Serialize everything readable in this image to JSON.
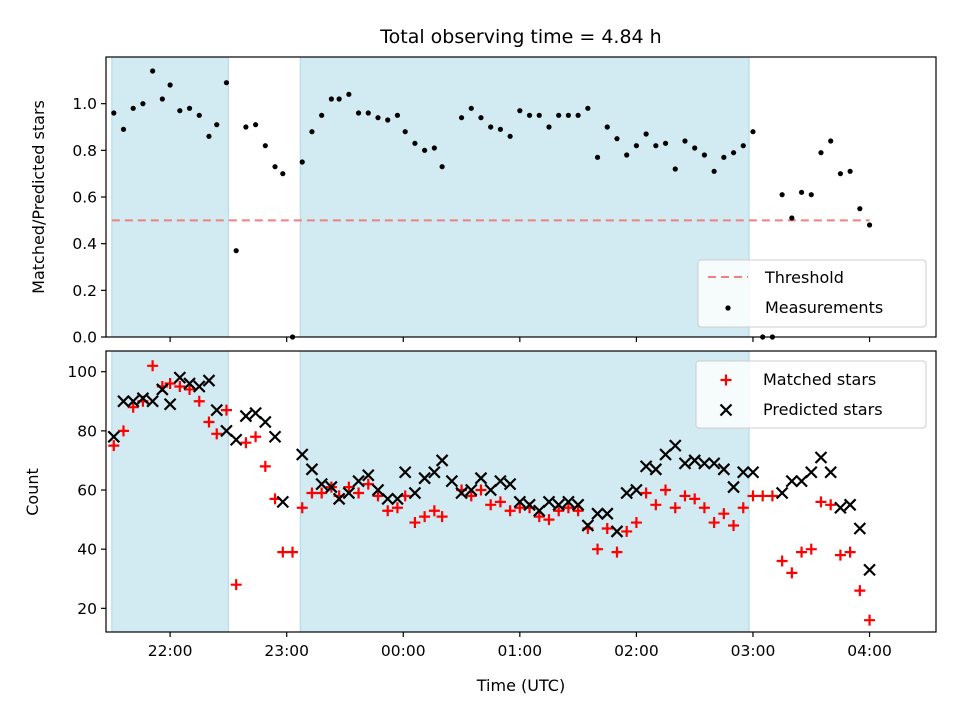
{
  "title": "Total observing time = 4.84 h",
  "colors": {
    "threshold": "#f08080",
    "measurements": "#000000",
    "matched": "#ff0000",
    "predicted": "#000000",
    "shade": "#add8e6"
  },
  "chart_data": [
    {
      "type": "scatter",
      "panel": "top",
      "xlabel": "",
      "ylabel": "Matched/Predicted stars",
      "ylim": [
        0.0,
        1.2
      ],
      "yticks": [
        0.0,
        0.2,
        0.4,
        0.6,
        0.8,
        1.0
      ],
      "ytick_labels": [
        "0.0",
        "0.2",
        "0.4",
        "0.6",
        "0.8",
        "1.0"
      ],
      "xlim_hours": [
        21.45,
        4.57
      ],
      "shaded_intervals": [
        [
          "21:30",
          "22:30"
        ],
        [
          "23:07",
          "02:58"
        ]
      ],
      "threshold": {
        "name": "Threshold",
        "value": 0.5,
        "x_range": [
          "21:30",
          "04:00"
        ],
        "style": "dashed"
      },
      "series": [
        {
          "name": "Measurements",
          "points": [
            [
              "21:31",
              0.96
            ],
            [
              "21:36",
              0.89
            ],
            [
              "21:41",
              0.98
            ],
            [
              "21:46",
              1.0
            ],
            [
              "21:51",
              1.14
            ],
            [
              "21:56",
              1.02
            ],
            [
              "22:00",
              1.08
            ],
            [
              "22:05",
              0.97
            ],
            [
              "22:10",
              0.98
            ],
            [
              "22:15",
              0.95
            ],
            [
              "22:20",
              0.86
            ],
            [
              "22:24",
              0.91
            ],
            [
              "22:29",
              1.09
            ],
            [
              "22:34",
              0.37
            ],
            [
              "22:39",
              0.9
            ],
            [
              "22:44",
              0.91
            ],
            [
              "22:49",
              0.82
            ],
            [
              "22:54",
              0.73
            ],
            [
              "22:58",
              0.7
            ],
            [
              "23:03",
              0.0
            ],
            [
              "23:08",
              0.75
            ],
            [
              "23:13",
              0.88
            ],
            [
              "23:18",
              0.95
            ],
            [
              "23:23",
              1.02
            ],
            [
              "23:27",
              1.02
            ],
            [
              "23:32",
              1.04
            ],
            [
              "23:37",
              0.96
            ],
            [
              "23:42",
              0.96
            ],
            [
              "23:47",
              0.94
            ],
            [
              "23:52",
              0.93
            ],
            [
              "23:57",
              0.95
            ],
            [
              "00:01",
              0.88
            ],
            [
              "00:06",
              0.83
            ],
            [
              "00:11",
              0.8
            ],
            [
              "00:16",
              0.81
            ],
            [
              "00:20",
              0.73
            ],
            [
              "00:30",
              0.94
            ],
            [
              "00:35",
              0.98
            ],
            [
              "00:40",
              0.94
            ],
            [
              "00:45",
              0.9
            ],
            [
              "00:50",
              0.89
            ],
            [
              "00:55",
              0.86
            ],
            [
              "01:00",
              0.97
            ],
            [
              "01:05",
              0.95
            ],
            [
              "01:10",
              0.95
            ],
            [
              "01:15",
              0.9
            ],
            [
              "01:20",
              0.95
            ],
            [
              "01:25",
              0.95
            ],
            [
              "01:30",
              0.95
            ],
            [
              "01:35",
              0.98
            ],
            [
              "01:40",
              0.77
            ],
            [
              "01:45",
              0.9
            ],
            [
              "01:50",
              0.85
            ],
            [
              "01:55",
              0.78
            ],
            [
              "02:00",
              0.82
            ],
            [
              "02:05",
              0.87
            ],
            [
              "02:10",
              0.82
            ],
            [
              "02:15",
              0.83
            ],
            [
              "02:20",
              0.72
            ],
            [
              "02:25",
              0.84
            ],
            [
              "02:30",
              0.81
            ],
            [
              "02:35",
              0.78
            ],
            [
              "02:40",
              0.71
            ],
            [
              "02:45",
              0.77
            ],
            [
              "02:50",
              0.79
            ],
            [
              "02:55",
              0.82
            ],
            [
              "03:00",
              0.88
            ],
            [
              "03:05",
              0.0
            ],
            [
              "03:10",
              0.0
            ],
            [
              "03:15",
              0.61
            ],
            [
              "03:20",
              0.51
            ],
            [
              "03:25",
              0.62
            ],
            [
              "03:30",
              0.61
            ],
            [
              "03:35",
              0.79
            ],
            [
              "03:40",
              0.84
            ],
            [
              "03:45",
              0.7
            ],
            [
              "03:50",
              0.71
            ],
            [
              "03:55",
              0.55
            ],
            [
              "04:00",
              0.48
            ]
          ]
        }
      ],
      "legend": {
        "position": "lower right",
        "entries": [
          "Threshold",
          "Measurements"
        ]
      }
    },
    {
      "type": "scatter",
      "panel": "bottom",
      "xlabel": "Time (UTC)",
      "ylabel": "Count",
      "ylim": [
        12,
        107
      ],
      "yticks": [
        20,
        40,
        60,
        80,
        100
      ],
      "ytick_labels": [
        "20",
        "40",
        "60",
        "80",
        "100"
      ],
      "xlim_hours": [
        21.45,
        4.57
      ],
      "xticks": [
        "22:00",
        "23:00",
        "00:00",
        "01:00",
        "02:00",
        "03:00",
        "04:00"
      ],
      "shaded_intervals": [
        [
          "21:30",
          "22:30"
        ],
        [
          "23:07",
          "02:58"
        ]
      ],
      "series": [
        {
          "name": "Matched stars",
          "marker": "+",
          "points": [
            [
              "21:31",
              75
            ],
            [
              "21:36",
              80
            ],
            [
              "21:41",
              88
            ],
            [
              "21:46",
              90
            ],
            [
              "21:51",
              102
            ],
            [
              "21:56",
              95
            ],
            [
              "22:00",
              96
            ],
            [
              "22:05",
              95
            ],
            [
              "22:10",
              94
            ],
            [
              "22:15",
              90
            ],
            [
              "22:20",
              83
            ],
            [
              "22:24",
              79
            ],
            [
              "22:29",
              87
            ],
            [
              "22:34",
              28
            ],
            [
              "22:39",
              76
            ],
            [
              "22:44",
              78
            ],
            [
              "22:49",
              68
            ],
            [
              "22:54",
              57
            ],
            [
              "22:58",
              39
            ],
            [
              "23:03",
              39
            ],
            [
              "23:08",
              54
            ],
            [
              "23:13",
              59
            ],
            [
              "23:18",
              59
            ],
            [
              "23:23",
              61
            ],
            [
              "23:27",
              58
            ],
            [
              "23:32",
              61
            ],
            [
              "23:37",
              59
            ],
            [
              "23:42",
              62
            ],
            [
              "23:47",
              58
            ],
            [
              "23:52",
              53
            ],
            [
              "23:57",
              54
            ],
            [
              "00:01",
              58
            ],
            [
              "00:06",
              49
            ],
            [
              "00:11",
              51
            ],
            [
              "00:16",
              53
            ],
            [
              "00:20",
              51
            ],
            [
              "00:30",
              60
            ],
            [
              "00:35",
              58
            ],
            [
              "00:40",
              60
            ],
            [
              "00:45",
              55
            ],
            [
              "00:50",
              56
            ],
            [
              "00:55",
              53
            ],
            [
              "01:00",
              54
            ],
            [
              "01:05",
              54
            ],
            [
              "01:10",
              51
            ],
            [
              "01:15",
              50
            ],
            [
              "01:20",
              53
            ],
            [
              "01:25",
              54
            ],
            [
              "01:30",
              53
            ],
            [
              "01:35",
              47
            ],
            [
              "01:40",
              40
            ],
            [
              "01:45",
              47
            ],
            [
              "01:50",
              39
            ],
            [
              "01:55",
              46
            ],
            [
              "02:00",
              49
            ],
            [
              "02:05",
              59
            ],
            [
              "02:10",
              55
            ],
            [
              "02:15",
              60
            ],
            [
              "02:20",
              54
            ],
            [
              "02:25",
              58
            ],
            [
              "02:30",
              57
            ],
            [
              "02:35",
              54
            ],
            [
              "02:40",
              49
            ],
            [
              "02:45",
              52
            ],
            [
              "02:50",
              48
            ],
            [
              "02:55",
              54
            ],
            [
              "03:00",
              58
            ],
            [
              "03:05",
              58
            ],
            [
              "03:10",
              58
            ],
            [
              "03:15",
              36
            ],
            [
              "03:20",
              32
            ],
            [
              "03:25",
              39
            ],
            [
              "03:30",
              40
            ],
            [
              "03:35",
              56
            ],
            [
              "03:40",
              55
            ],
            [
              "03:45",
              38
            ],
            [
              "03:50",
              39
            ],
            [
              "03:55",
              26
            ],
            [
              "04:00",
              16
            ]
          ]
        },
        {
          "name": "Predicted stars",
          "marker": "x",
          "points": [
            [
              "21:31",
              78
            ],
            [
              "21:36",
              90
            ],
            [
              "21:41",
              90
            ],
            [
              "21:46",
              91
            ],
            [
              "21:51",
              90
            ],
            [
              "21:56",
              94
            ],
            [
              "22:00",
              89
            ],
            [
              "22:05",
              98
            ],
            [
              "22:10",
              96
            ],
            [
              "22:15",
              95
            ],
            [
              "22:20",
              97
            ],
            [
              "22:24",
              87
            ],
            [
              "22:29",
              80
            ],
            [
              "22:34",
              77
            ],
            [
              "22:39",
              85
            ],
            [
              "22:44",
              86
            ],
            [
              "22:49",
              83
            ],
            [
              "22:54",
              78
            ],
            [
              "22:58",
              56
            ],
            [
              "23:08",
              72
            ],
            [
              "23:13",
              67
            ],
            [
              "23:18",
              62
            ],
            [
              "23:23",
              61
            ],
            [
              "23:27",
              57
            ],
            [
              "23:32",
              59
            ],
            [
              "23:37",
              63
            ],
            [
              "23:42",
              65
            ],
            [
              "23:47",
              60
            ],
            [
              "23:52",
              57
            ],
            [
              "23:57",
              57
            ],
            [
              "00:01",
              66
            ],
            [
              "00:06",
              59
            ],
            [
              "00:11",
              64
            ],
            [
              "00:16",
              66
            ],
            [
              "00:20",
              70
            ],
            [
              "00:25",
              63
            ],
            [
              "00:30",
              59
            ],
            [
              "00:35",
              60
            ],
            [
              "00:40",
              64
            ],
            [
              "00:45",
              60
            ],
            [
              "00:50",
              63
            ],
            [
              "00:55",
              62
            ],
            [
              "01:00",
              56
            ],
            [
              "01:05",
              55
            ],
            [
              "01:10",
              53
            ],
            [
              "01:15",
              56
            ],
            [
              "01:20",
              55
            ],
            [
              "01:25",
              56
            ],
            [
              "01:30",
              55
            ],
            [
              "01:35",
              48
            ],
            [
              "01:40",
              52
            ],
            [
              "01:45",
              52
            ],
            [
              "01:50",
              46
            ],
            [
              "01:55",
              59
            ],
            [
              "02:00",
              60
            ],
            [
              "02:05",
              68
            ],
            [
              "02:10",
              67
            ],
            [
              "02:15",
              72
            ],
            [
              "02:20",
              75
            ],
            [
              "02:25",
              69
            ],
            [
              "02:30",
              70
            ],
            [
              "02:35",
              69
            ],
            [
              "02:40",
              69
            ],
            [
              "02:45",
              67
            ],
            [
              "02:50",
              61
            ],
            [
              "02:55",
              66
            ],
            [
              "03:00",
              66
            ],
            [
              "03:15",
              59
            ],
            [
              "03:20",
              63
            ],
            [
              "03:25",
              63
            ],
            [
              "03:30",
              66
            ],
            [
              "03:35",
              71
            ],
            [
              "03:40",
              66
            ],
            [
              "03:45",
              54
            ],
            [
              "03:50",
              55
            ],
            [
              "03:55",
              47
            ],
            [
              "04:00",
              33
            ]
          ]
        }
      ],
      "legend": {
        "position": "upper right",
        "entries": [
          "Matched stars",
          "Predicted stars"
        ]
      }
    }
  ]
}
